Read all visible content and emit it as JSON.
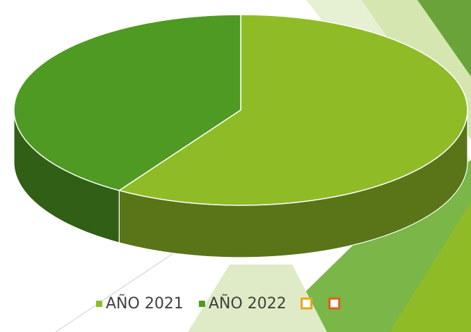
{
  "chart_data": {
    "type": "pie3d",
    "categories": [
      "AÑO 2021",
      "AÑO 2022",
      null,
      null
    ],
    "values": [
      59,
      41,
      null,
      null
    ],
    "colors": [
      "#8fbc26",
      "#4e9a22",
      "#e8a617",
      "#e35f15"
    ]
  }
}
